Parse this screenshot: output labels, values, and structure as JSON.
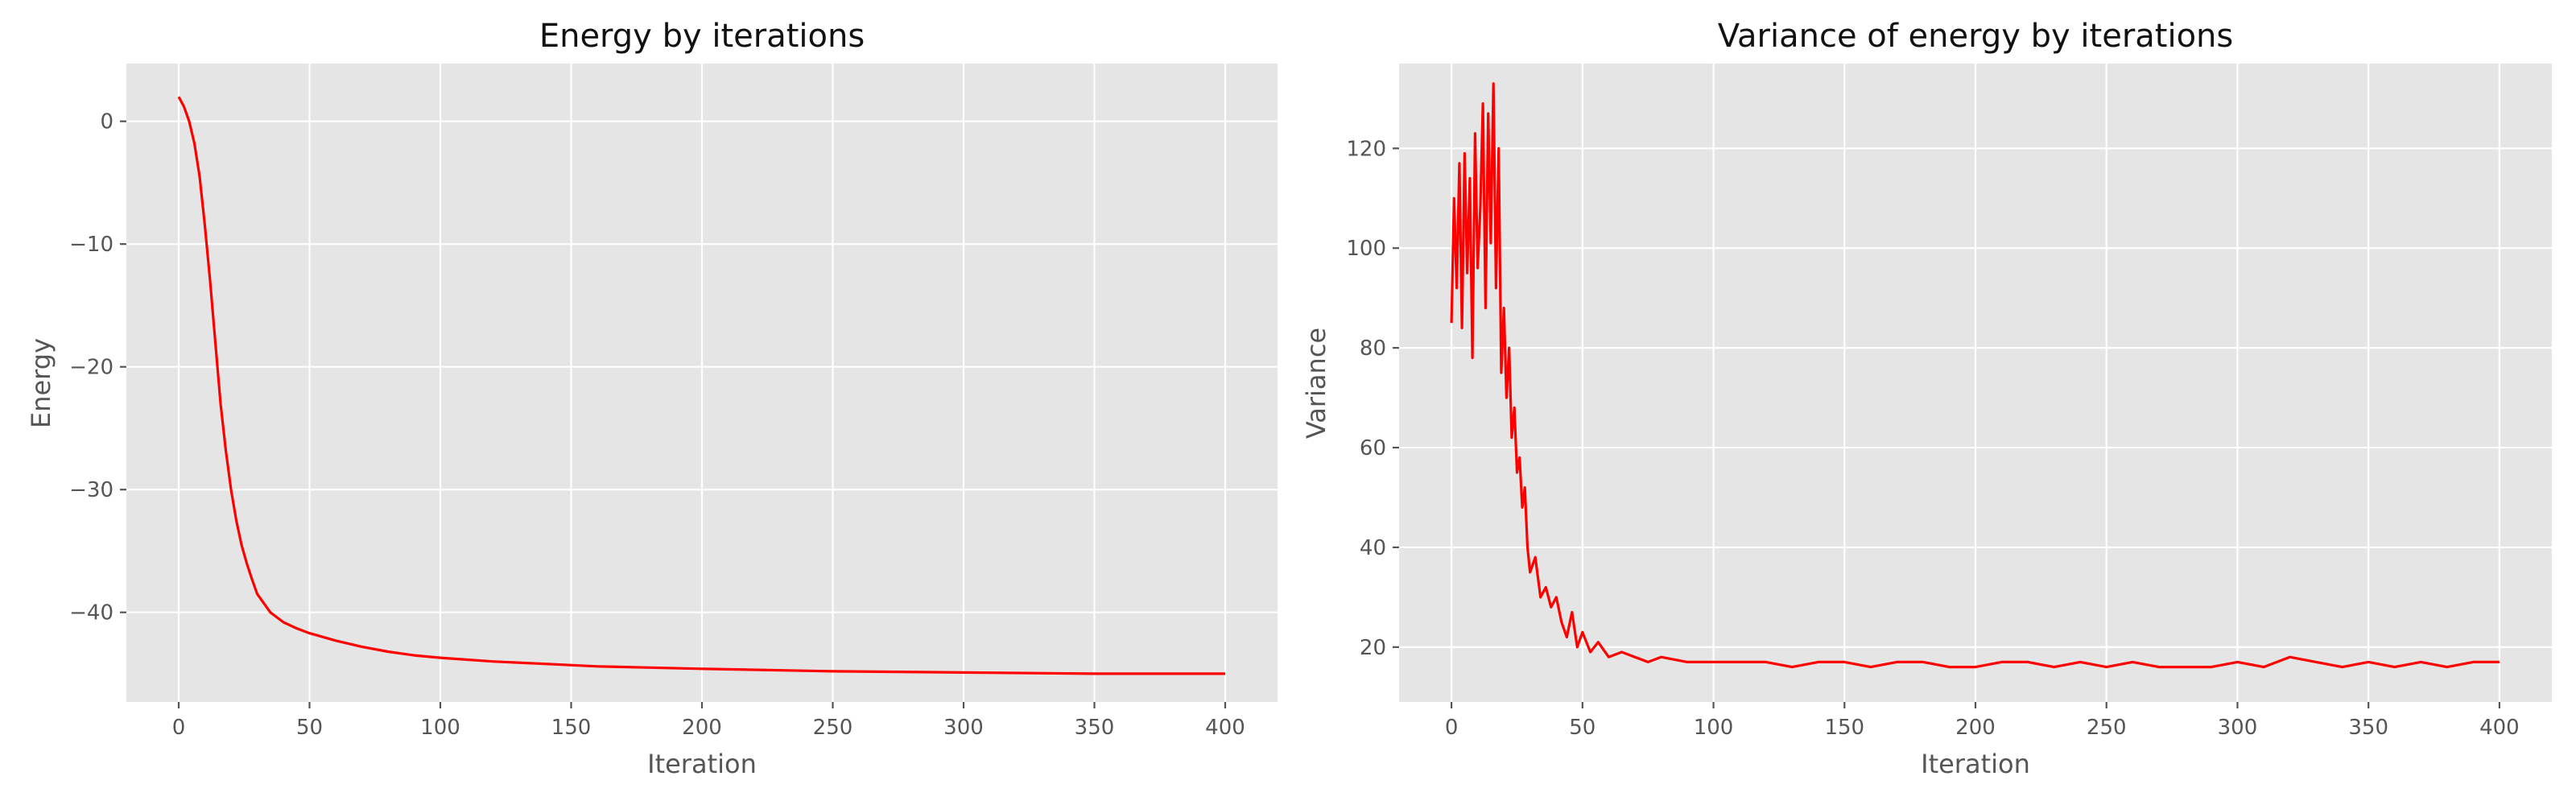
{
  "chart_data": [
    {
      "type": "line",
      "title": "Energy by iterations",
      "xlabel": "Iteration",
      "ylabel": "Energy",
      "xlim": [
        -20,
        420
      ],
      "ylim": [
        -47.3,
        4.7
      ],
      "xticks": [
        0,
        50,
        100,
        150,
        200,
        250,
        300,
        350,
        400
      ],
      "yticks": [
        -40,
        -30,
        -20,
        -10,
        0
      ],
      "grid": true,
      "legend": "none",
      "series": [
        {
          "color": "#ff0000",
          "x": [
            0,
            2,
            4,
            6,
            8,
            10,
            12,
            14,
            16,
            18,
            20,
            22,
            24,
            26,
            28,
            30,
            35,
            40,
            45,
            50,
            55,
            60,
            70,
            80,
            90,
            100,
            120,
            140,
            160,
            180,
            200,
            250,
            300,
            350,
            400
          ],
          "y": [
            2.0,
            1.2,
            0.0,
            -1.8,
            -4.5,
            -8.5,
            -13.0,
            -18.0,
            -23.0,
            -26.8,
            -30.0,
            -32.5,
            -34.5,
            -36.0,
            -37.3,
            -38.5,
            -40.0,
            -40.8,
            -41.3,
            -41.7,
            -42.0,
            -42.3,
            -42.8,
            -43.2,
            -43.5,
            -43.7,
            -44.0,
            -44.2,
            -44.4,
            -44.5,
            -44.6,
            -44.8,
            -44.9,
            -45.0,
            -45.0
          ]
        }
      ]
    },
    {
      "type": "line",
      "title": "Variance of energy by iterations",
      "xlabel": "Iteration",
      "ylabel": "Variance",
      "xlim": [
        -20,
        420
      ],
      "ylim": [
        9,
        137
      ],
      "xticks": [
        0,
        50,
        100,
        150,
        200,
        250,
        300,
        350,
        400
      ],
      "yticks": [
        20,
        40,
        60,
        80,
        100,
        120
      ],
      "grid": true,
      "legend": "none",
      "series": [
        {
          "color": "#ff0000",
          "x": [
            0,
            1,
            2,
            3,
            4,
            5,
            6,
            7,
            8,
            9,
            10,
            11,
            12,
            13,
            14,
            15,
            16,
            17,
            18,
            19,
            20,
            21,
            22,
            23,
            24,
            25,
            26,
            27,
            28,
            29,
            30,
            32,
            34,
            36,
            38,
            40,
            42,
            44,
            46,
            48,
            50,
            53,
            56,
            60,
            65,
            70,
            75,
            80,
            90,
            100,
            110,
            120,
            130,
            140,
            150,
            160,
            170,
            180,
            190,
            200,
            210,
            220,
            230,
            240,
            250,
            260,
            270,
            280,
            290,
            300,
            310,
            320,
            330,
            340,
            350,
            360,
            370,
            380,
            390,
            400
          ],
          "y": [
            85,
            110,
            92,
            117,
            84,
            119,
            95,
            114,
            78,
            123,
            96,
            108,
            129,
            88,
            127,
            101,
            133,
            92,
            120,
            75,
            88,
            70,
            80,
            62,
            68,
            55,
            58,
            48,
            52,
            40,
            35,
            38,
            30,
            32,
            28,
            30,
            25,
            22,
            27,
            20,
            23,
            19,
            21,
            18,
            19,
            18,
            17,
            18,
            17,
            17,
            17,
            17,
            16,
            17,
            17,
            16,
            17,
            17,
            16,
            16,
            17,
            17,
            16,
            17,
            16,
            17,
            16,
            16,
            16,
            17,
            16,
            18,
            17,
            16,
            17,
            16,
            17,
            16,
            17,
            17
          ]
        }
      ]
    }
  ]
}
